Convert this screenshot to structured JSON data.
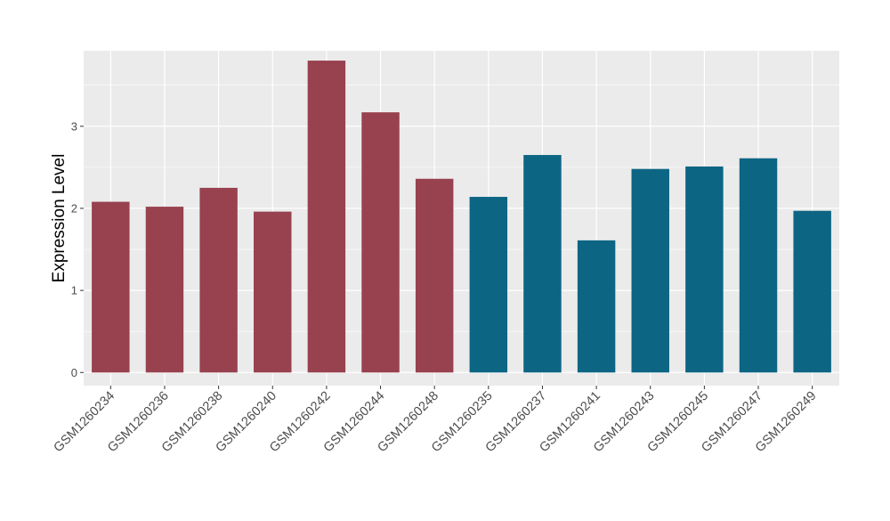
{
  "chart_data": {
    "type": "bar",
    "title": "",
    "xlabel": "",
    "ylabel": "Expression Level",
    "categories": [
      "GSM1260234",
      "GSM1260236",
      "GSM1260238",
      "GSM1260240",
      "GSM1260242",
      "GSM1260244",
      "GSM1260248",
      "GSM1260235",
      "GSM1260237",
      "GSM1260241",
      "GSM1260243",
      "GSM1260245",
      "GSM1260247",
      "GSM1260249"
    ],
    "values": [
      2.08,
      2.02,
      2.25,
      1.96,
      3.8,
      3.17,
      2.36,
      2.14,
      2.65,
      1.61,
      2.48,
      2.51,
      2.61,
      1.97
    ],
    "groups": [
      0,
      0,
      0,
      0,
      0,
      0,
      0,
      1,
      1,
      1,
      1,
      1,
      1,
      1
    ],
    "group_colors": [
      "#98414f",
      "#0d6584"
    ],
    "ylim": [
      -0.16,
      3.92
    ],
    "yticks": [
      0,
      1,
      2,
      3
    ],
    "grid": true,
    "panel_background": "#ebebeb",
    "grid_color": "#ffffff",
    "legend": "none"
  }
}
